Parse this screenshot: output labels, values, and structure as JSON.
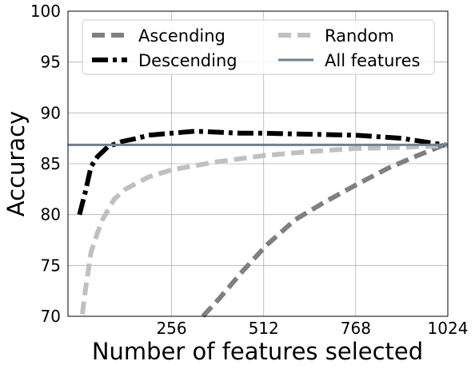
{
  "chart_data": {
    "type": "line",
    "title": "",
    "xlabel": "Number of features selected",
    "ylabel": "Accuracy",
    "xlim": [
      -32,
      1024
    ],
    "ylim": [
      70,
      100
    ],
    "xticks": [
      256,
      512,
      768,
      1024
    ],
    "yticks": [
      70,
      75,
      80,
      85,
      90,
      95,
      100
    ],
    "grid": true,
    "legend": {
      "placement": "top",
      "columns": 2
    },
    "series": [
      {
        "name": "Ascending",
        "color": "#808080",
        "style": "dashed",
        "x": [
          343,
          390,
          455,
          520,
          600,
          680,
          768,
          860,
          940,
          1024
        ],
        "y": [
          70.0,
          71.8,
          74.5,
          77.0,
          79.5,
          81.2,
          82.9,
          84.6,
          85.8,
          87.0
        ]
      },
      {
        "name": "Descending",
        "color": "#000000",
        "style": "dashdot",
        "x": [
          0,
          16,
          32,
          50,
          80,
          120,
          160,
          192,
          256,
          320,
          384,
          448,
          512,
          640,
          768,
          896,
          1024
        ],
        "y": [
          80.0,
          82.2,
          84.7,
          85.7,
          86.7,
          87.2,
          87.5,
          87.8,
          88.0,
          88.2,
          88.1,
          88.0,
          88.0,
          87.9,
          87.8,
          87.5,
          86.8
        ]
      },
      {
        "name": "Random",
        "color": "#c0c0c0",
        "style": "dashed",
        "x": [
          8,
          16,
          32,
          48,
          64,
          96,
          128,
          192,
          256,
          384,
          512,
          640,
          768,
          896,
          1024
        ],
        "y": [
          70.2,
          72.5,
          76.3,
          78.0,
          79.5,
          81.5,
          82.5,
          83.7,
          84.4,
          85.2,
          85.8,
          86.2,
          86.5,
          86.6,
          86.8
        ]
      },
      {
        "name": "All features",
        "color": "#708090",
        "style": "solid",
        "x": [
          -32,
          1024
        ],
        "y": [
          86.85,
          86.85
        ]
      }
    ]
  }
}
